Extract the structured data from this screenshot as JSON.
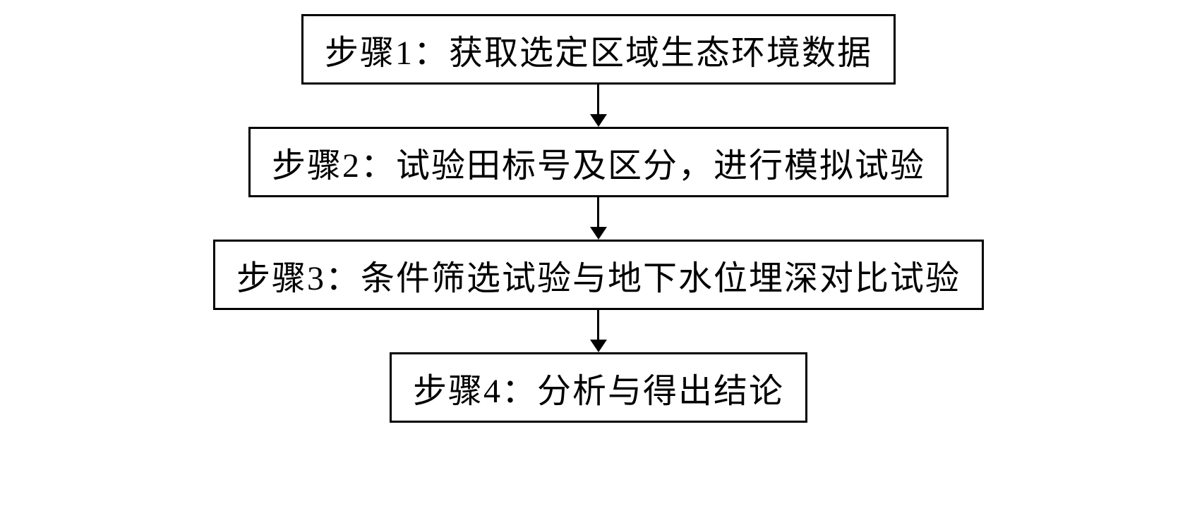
{
  "flowchart": {
    "type": "flowchart",
    "direction": "vertical",
    "background_color": "#ffffff",
    "border_color": "#000000",
    "border_width": 3,
    "text_color": "#000000",
    "font_size": 48,
    "font_family": "SimSun",
    "arrow_color": "#000000",
    "arrow_line_width": 3,
    "arrow_length": 42,
    "arrow_head_size": 18,
    "box_padding_vertical": 12,
    "box_padding_horizontal": 30,
    "nodes": [
      {
        "id": "step1",
        "label": "步骤1：获取选定区域生态环境数据",
        "order": 1
      },
      {
        "id": "step2",
        "label": "步骤2：试验田标号及区分，进行模拟试验",
        "order": 2
      },
      {
        "id": "step3",
        "label": "步骤3：条件筛选试验与地下水位埋深对比试验",
        "order": 3
      },
      {
        "id": "step4",
        "label": "步骤4：分析与得出结论",
        "order": 4
      }
    ],
    "edges": [
      {
        "from": "step1",
        "to": "step2"
      },
      {
        "from": "step2",
        "to": "step3"
      },
      {
        "from": "step3",
        "to": "step4"
      }
    ]
  }
}
